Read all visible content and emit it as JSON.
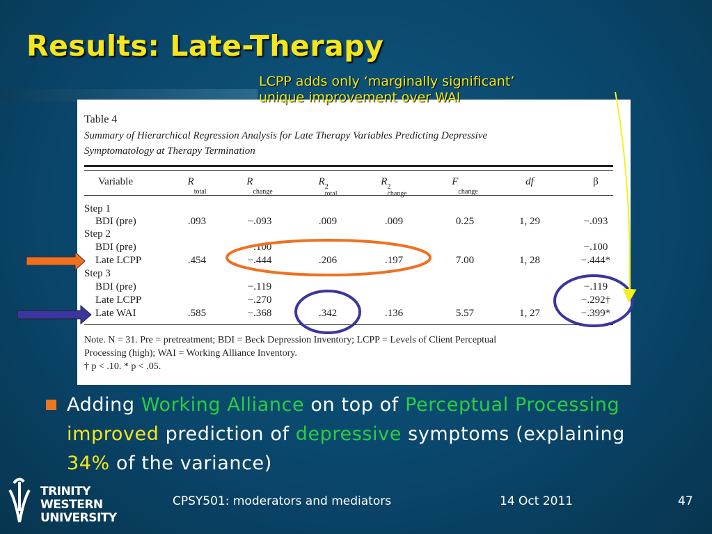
{
  "title": "Results: Late-Therapy",
  "callout": {
    "lines": [
      "LCPP adds only ‘marginally significant’",
      "unique improvement over WAI"
    ]
  },
  "table": {
    "caption": "Table 4",
    "subtitle": [
      "Summary of Hierarchical Regression Analysis for Late Therapy Variables Predicting Depressive",
      "Symptomatology at Therapy Termination"
    ],
    "headers": [
      {
        "symbol": "Variable"
      },
      {
        "symbol": "R",
        "sub": "total"
      },
      {
        "symbol": "R",
        "sub": "change"
      },
      {
        "symbol": "R",
        "sup": "2",
        "sub": "total"
      },
      {
        "symbol": "R",
        "sup": "2",
        "sub": "change"
      },
      {
        "symbol": "F",
        "sub": "change"
      },
      {
        "symbol": "df"
      },
      {
        "symbol": "β"
      }
    ],
    "rows": [
      [
        "Step 1",
        null,
        null,
        null,
        null,
        null,
        null,
        null
      ],
      [
        "BDI (pre)",
        ".093",
        "−.093",
        ".009",
        ".009",
        "0.25",
        "1, 29",
        "−.093"
      ],
      [
        "Step 2",
        null,
        null,
        null,
        null,
        null,
        null,
        null
      ],
      [
        "BDI (pre)",
        null,
        "−.100",
        null,
        null,
        null,
        null,
        "−.100"
      ],
      [
        "Late LCPP",
        ".454",
        "−.444",
        ".206",
        ".197",
        "7.00",
        "1, 28",
        "−.444*"
      ],
      [
        "Step 3",
        null,
        null,
        null,
        null,
        null,
        null,
        null
      ],
      [
        "BDI (pre)",
        null,
        "−.119",
        null,
        null,
        null,
        null,
        "−.119"
      ],
      [
        "Late LCPP",
        null,
        "−.270",
        null,
        null,
        null,
        null,
        "−.292†"
      ],
      [
        "Late WAI",
        ".585",
        "−.368",
        ".342",
        ".136",
        "5.57",
        "1, 27",
        "−.399*"
      ]
    ],
    "note": [
      "Note.   N = 31. Pre = pretreatment; BDI = Beck Depression Inventory; LCPP = Levels of Client Perceptual",
      "Processing (high); WAI = Working Alliance Inventory.",
      "† p < .10.    * p < .05."
    ]
  },
  "bullet": [
    "Adding ",
    "Working Alliance",
    " on top of ",
    "Perceptual Processing",
    " improved",
    " prediction of ",
    "depressive",
    " symptoms (explaining ",
    "34%",
    " of the variance)"
  ],
  "footer": {
    "logo": [
      "TRINITY",
      "WESTERN",
      "UNIVERSITY"
    ],
    "course": "CPSY501: moderators and mediators",
    "date": "14 Oct 2011",
    "page": "47"
  }
}
